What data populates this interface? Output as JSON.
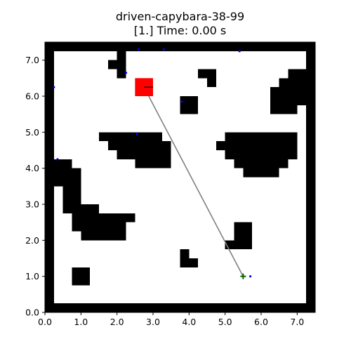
{
  "chart_data": {
    "type": "scatter",
    "title": "driven-capybara-38-99",
    "subtitle": "[1.] Time: 0.00 s",
    "xlim": [
      0.0,
      7.5
    ],
    "ylim": [
      0.0,
      7.5
    ],
    "xticks": [
      "0.0",
      "1.0",
      "2.0",
      "3.0",
      "4.0",
      "5.0",
      "6.0",
      "7.0"
    ],
    "yticks": [
      "0.0",
      "1.0",
      "2.0",
      "3.0",
      "4.0",
      "5.0",
      "6.0",
      "7.0"
    ],
    "grid": false,
    "cell_size": 0.25,
    "obstacles": [
      [
        0.0,
        0.0,
        7.5,
        0.25
      ],
      [
        0.0,
        7.25,
        7.5,
        7.5
      ],
      [
        0.0,
        0.0,
        0.25,
        7.5
      ],
      [
        7.25,
        0.0,
        7.5,
        7.5
      ],
      [
        2.0,
        6.5,
        2.25,
        7.25
      ],
      [
        1.75,
        6.75,
        2.0,
        7.0
      ],
      [
        4.25,
        6.5,
        4.75,
        6.75
      ],
      [
        4.5,
        6.25,
        4.75,
        6.5
      ],
      [
        6.75,
        6.5,
        7.25,
        6.75
      ],
      [
        6.5,
        6.25,
        7.25,
        6.5
      ],
      [
        6.25,
        5.75,
        7.25,
        6.25
      ],
      [
        6.25,
        5.5,
        7.0,
        5.75
      ],
      [
        3.75,
        5.5,
        4.25,
        6.0
      ],
      [
        1.5,
        4.75,
        3.25,
        5.0
      ],
      [
        1.75,
        4.5,
        3.5,
        4.75
      ],
      [
        2.0,
        4.25,
        3.5,
        4.5
      ],
      [
        2.5,
        4.0,
        3.5,
        4.25
      ],
      [
        5.0,
        4.75,
        7.0,
        5.0
      ],
      [
        4.75,
        4.5,
        7.0,
        4.75
      ],
      [
        5.0,
        4.25,
        7.0,
        4.5
      ],
      [
        5.25,
        4.0,
        6.75,
        4.25
      ],
      [
        5.5,
        3.75,
        6.5,
        4.0
      ],
      [
        0.25,
        4.0,
        0.75,
        4.25
      ],
      [
        0.25,
        3.5,
        1.0,
        4.0
      ],
      [
        0.5,
        3.0,
        1.0,
        3.5
      ],
      [
        0.5,
        2.75,
        1.5,
        3.0
      ],
      [
        0.75,
        2.5,
        2.5,
        2.75
      ],
      [
        0.75,
        2.25,
        2.25,
        2.5
      ],
      [
        1.0,
        2.0,
        2.25,
        2.25
      ],
      [
        5.25,
        2.0,
        5.75,
        2.5
      ],
      [
        5.0,
        1.75,
        5.75,
        2.0
      ],
      [
        3.75,
        1.5,
        4.0,
        1.75
      ],
      [
        3.75,
        1.25,
        4.25,
        1.5
      ],
      [
        0.75,
        0.75,
        1.25,
        1.25
      ]
    ],
    "start": [
      2.75,
      6.25
    ],
    "goal": [
      5.5,
      1.0
    ],
    "path": [
      [
        2.75,
        6.25
      ],
      [
        5.5,
        1.0
      ]
    ],
    "heading_tick": [
      [
        2.75,
        6.25
      ],
      [
        3.0,
        6.25
      ]
    ],
    "markers": [
      [
        2.6,
        7.3
      ],
      [
        3.3,
        7.3
      ],
      [
        5.4,
        7.25
      ],
      [
        0.25,
        6.25
      ],
      [
        2.25,
        6.65
      ],
      [
        3.8,
        5.85
      ],
      [
        2.55,
        4.95
      ],
      [
        0.35,
        4.25
      ],
      [
        5.7,
        1.0
      ]
    ],
    "colors": {
      "obstacle": "#000000",
      "robot": "#ff0000",
      "path": "#808080",
      "goal": "#006400",
      "marker": "#0000ff",
      "heading": "#000000"
    }
  }
}
